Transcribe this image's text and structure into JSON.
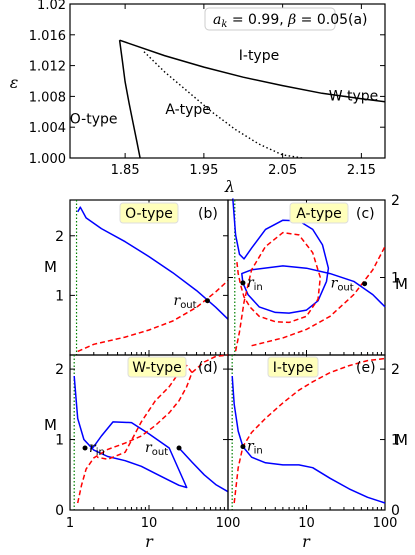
{
  "chart_data": [
    {
      "id": "a",
      "type": "line",
      "panel_label": "(a)",
      "annotation": "a_k = 0.99, β = 0.05",
      "annotation_parts": {
        "a": "a",
        "k": "k",
        "rest": " = 0.99, ",
        "beta": "β",
        "rest2": " = 0.05"
      },
      "xlabel": "λ",
      "ylabel": "ε",
      "xlim": [
        1.78,
        2.18
      ],
      "ylim": [
        1.0,
        1.02
      ],
      "xticks": [
        1.85,
        1.95,
        2.05,
        2.15
      ],
      "xtick_labels": [
        "1.85",
        "1.95",
        "2.05",
        "2.15"
      ],
      "yticks": [
        1.0,
        1.004,
        1.008,
        1.012,
        1.016,
        1.02
      ],
      "ytick_labels": [
        "1.000",
        "1.004",
        "1.008",
        "1.012",
        "1.016",
        "1.020"
      ],
      "ytick_labels_top": "1.02",
      "region_labels": [
        {
          "text": "O-type",
          "x": 1.81,
          "y": 1.0045
        },
        {
          "text": "A-type",
          "x": 1.93,
          "y": 1.0057
        },
        {
          "text": "I-type",
          "x": 2.02,
          "y": 1.0127
        },
        {
          "text": "W-type",
          "x": 2.14,
          "y": 1.0075
        }
      ],
      "series": [
        {
          "style": "solid",
          "x": [
            1.843,
            1.8465,
            1.85,
            1.855,
            1.86,
            1.865,
            1.869
          ],
          "y": [
            1.0153,
            1.0126,
            1.0099,
            1.0071,
            1.0046,
            1.0021,
            1.0
          ]
        },
        {
          "style": "solid",
          "x": [
            1.843,
            1.9,
            1.95,
            2.0,
            2.05,
            2.1,
            2.15,
            2.18
          ],
          "y": [
            1.0153,
            1.0133,
            1.0118,
            1.0105,
            1.0094,
            1.0084,
            1.0077,
            1.0073
          ]
        },
        {
          "style": "dotted",
          "x": [
            1.874,
            1.9,
            1.93,
            1.96,
            1.99,
            2.02,
            2.05,
            2.075
          ],
          "y": [
            1.0138,
            1.0112,
            1.0086,
            1.006,
            1.0037,
            1.0018,
            1.0004,
            1.0
          ]
        }
      ]
    },
    {
      "id": "b",
      "type": "line",
      "panel_label": "(b)",
      "type_label": "O-type",
      "xlabel": "r",
      "ylabel": "M",
      "xscale": "log",
      "xlim": [
        1,
        100
      ],
      "ylim": [
        0,
        2.6
      ],
      "xtick_labels": [
        "1",
        "10",
        "100"
      ],
      "ytick_labels": [
        "0",
        "1",
        "2"
      ],
      "r_out_label": "r_out",
      "r_out": {
        "x": 55,
        "y": 0.91
      },
      "series": [
        {
          "color": "#0000ff",
          "style": "solid",
          "x": [
            1.25,
            1.35,
            1.6,
            2.5,
            5,
            10,
            20,
            40,
            70,
            100
          ],
          "y": [
            2.4,
            2.48,
            2.3,
            2.12,
            1.9,
            1.65,
            1.38,
            1.08,
            0.8,
            0.6
          ]
        },
        {
          "color": "#ff0000",
          "style": "dashed",
          "x": [
            1.25,
            2,
            5,
            10,
            20,
            40,
            70,
            100
          ],
          "y": [
            0.06,
            0.18,
            0.3,
            0.42,
            0.57,
            0.8,
            1.06,
            1.25
          ]
        }
      ],
      "vline": {
        "x": 1.21,
        "color": "#008000",
        "style": "dotted"
      }
    },
    {
      "id": "c",
      "type": "line",
      "panel_label": "(c)",
      "type_label": "A-type",
      "xlabel": "r",
      "ylabel": "M",
      "xscale": "log",
      "xlim": [
        1,
        100
      ],
      "ylim": [
        0,
        2
      ],
      "xtick_labels": [
        "1",
        "10",
        "100"
      ],
      "ytick_labels": [
        "0",
        "1",
        "2"
      ],
      "r_in_label": "r_in",
      "r_out_label": "r_out",
      "r_in": {
        "x": 1.55,
        "y": 0.93
      },
      "r_out": {
        "x": 55,
        "y": 0.92
      },
      "series": [
        {
          "color": "#0000ff",
          "style": "solid",
          "x": [
            1.15,
            1.25,
            1.4,
            1.6,
            2,
            3,
            5,
            8,
            12,
            16,
            19,
            18,
            14,
            10,
            6,
            4,
            2.5,
            1.8,
            1.55,
            1.5,
            2,
            5,
            10,
            20,
            40,
            70,
            100
          ],
          "y": [
            2.02,
            1.55,
            1.3,
            1.24,
            1.38,
            1.62,
            1.74,
            1.73,
            1.62,
            1.42,
            1.12,
            0.95,
            0.7,
            0.58,
            0.54,
            0.55,
            0.62,
            0.78,
            0.93,
            1.05,
            1.1,
            1.15,
            1.12,
            1.05,
            0.95,
            0.78,
            0.62
          ]
        },
        {
          "color": "#ff0000",
          "style": "dashed",
          "x": [
            1.25,
            1.4,
            1.6,
            2,
            3,
            5,
            8,
            12,
            15,
            14,
            10,
            6,
            4,
            2.5,
            1.9,
            1.6,
            1.45,
            1.35,
            1.3
          ],
          "y": [
            0.05,
            0.3,
            0.68,
            1.1,
            1.4,
            1.58,
            1.55,
            1.32,
            1.0,
            0.72,
            0.5,
            0.42,
            0.43,
            0.5,
            0.62,
            0.75,
            0.9,
            1.05,
            1.2
          ]
        },
        {
          "color": "#ff0000",
          "style": "dashed",
          "x": [
            2,
            5,
            10,
            20,
            40,
            70,
            100
          ],
          "y": [
            0.12,
            0.22,
            0.33,
            0.5,
            0.78,
            1.1,
            1.4
          ]
        }
      ],
      "vline": {
        "x": 1.22,
        "color": "#008000",
        "style": "dotted"
      }
    },
    {
      "id": "d",
      "type": "line",
      "panel_label": "(d)",
      "type_label": "W-type",
      "xlabel": "r",
      "ylabel": "M",
      "xscale": "log",
      "xlim": [
        1,
        100
      ],
      "ylim": [
        0,
        2.2
      ],
      "xtick_labels": [
        "1",
        "10",
        "100"
      ],
      "ytick_labels": [
        "0",
        "1",
        "2"
      ],
      "r_in_label": "r_in",
      "r_out_label": "r_out",
      "r_in": {
        "x": 1.55,
        "y": 0.88
      },
      "r_out": {
        "x": 24,
        "y": 0.88
      },
      "series": [
        {
          "color": "#0000ff",
          "style": "solid",
          "x": [
            1.13,
            1.25,
            1.5,
            2,
            3,
            5,
            8,
            12,
            18,
            24,
            30,
            18,
            10,
            6,
            3.5,
            2.5,
            2,
            1.8
          ],
          "y": [
            1.9,
            1.3,
            1.0,
            0.85,
            0.76,
            0.7,
            0.62,
            0.52,
            0.42,
            0.35,
            0.32,
            0.88,
            1.08,
            1.24,
            1.25,
            1.05,
            0.9,
            0.86
          ]
        },
        {
          "color": "#0000ff",
          "style": "solid",
          "x": [
            24,
            35,
            50,
            70,
            100
          ],
          "y": [
            0.88,
            0.68,
            0.5,
            0.36,
            0.26
          ]
        },
        {
          "color": "#ff0000",
          "style": "dashed",
          "x": [
            1.25,
            1.4,
            1.6,
            2,
            3,
            5,
            8,
            12,
            18,
            24,
            30,
            35,
            30,
            24,
            18,
            12,
            8,
            5,
            3,
            2.2
          ],
          "y": [
            0.1,
            0.35,
            0.58,
            0.74,
            0.86,
            0.95,
            1.05,
            1.2,
            1.38,
            1.55,
            1.75,
            1.95,
            2.05,
            1.95,
            1.75,
            1.55,
            1.25,
            0.82,
            0.72,
            0.75
          ]
        },
        {
          "color": "#ff0000",
          "style": "dashed",
          "x": [
            35,
            50,
            70,
            100
          ],
          "y": [
            1.95,
            2.1,
            2.18,
            2.2
          ]
        }
      ],
      "vline": {
        "x": 1.13,
        "color": "#008000",
        "style": "dotted"
      }
    },
    {
      "id": "e",
      "type": "line",
      "panel_label": "(e)",
      "type_label": "I-type",
      "xlabel": "r",
      "ylabel": "M",
      "xscale": "log",
      "xlim": [
        1,
        100
      ],
      "ylim": [
        0,
        2.2
      ],
      "xtick_labels": [
        "1",
        "10",
        "100"
      ],
      "ytick_labels": [
        "0",
        "1",
        "2"
      ],
      "r_in_label": "r_in",
      "r_in": {
        "x": 1.55,
        "y": 0.9
      },
      "series": [
        {
          "color": "#0000ff",
          "style": "solid",
          "x": [
            1.13,
            1.2,
            1.35,
            1.55,
            2,
            3,
            5,
            8,
            12,
            20,
            35,
            60,
            100
          ],
          "y": [
            1.9,
            1.5,
            1.12,
            0.9,
            0.75,
            0.67,
            0.64,
            0.64,
            0.6,
            0.45,
            0.3,
            0.18,
            0.1
          ]
        },
        {
          "color": "#ff0000",
          "style": "dashed",
          "x": [
            1.2,
            1.35,
            1.55,
            2,
            3,
            5,
            8,
            12,
            20,
            35,
            60,
            100
          ],
          "y": [
            0.1,
            0.6,
            0.9,
            1.1,
            1.3,
            1.52,
            1.7,
            1.82,
            1.95,
            2.05,
            2.12,
            2.15
          ]
        }
      ],
      "vline": {
        "x": 1.13,
        "color": "#008000",
        "style": "dotted"
      }
    }
  ]
}
